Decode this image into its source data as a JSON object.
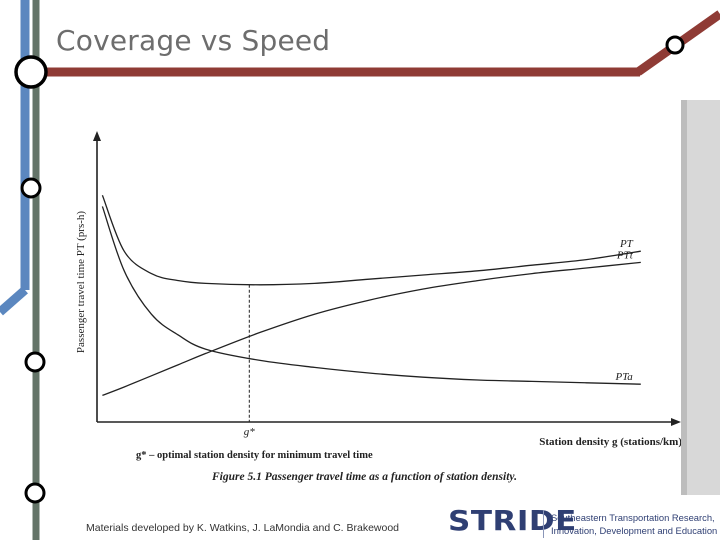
{
  "slide": {
    "title": "Coverage vs Speed",
    "footer": "Materials developed by K. Watkins, J. LaMondia and C. Brakewood",
    "logo": {
      "name": "STRIDE",
      "tagline": [
        "Southeastern Transportation Research,",
        "Innovation, Development and Education Center"
      ]
    },
    "colors": {
      "blue_line": "#5b87bf",
      "gray_line": "#647468",
      "red_line": "#8f3b35",
      "logo_blue": "#2f3f73"
    }
  },
  "chart_data": {
    "type": "line",
    "title": "Figure 5.1  Passenger travel time as a function of station density.",
    "xlabel": "Station density g (stations/km)",
    "ylabel": "Passenger travel time PT (prs-h)",
    "optimum_label": "g*",
    "optimum_note": "g* – optimal station density for minimum travel time",
    "x": [
      0.1,
      0.5,
      1,
      1.5,
      2,
      3,
      4,
      5,
      6,
      7,
      8,
      9,
      10
    ],
    "xlim": [
      0,
      10.5
    ],
    "ylim": [
      0,
      10
    ],
    "optimum_x": 2.8,
    "series": [
      {
        "name": "PT",
        "label": "PT",
        "values": [
          8.1,
          6.1,
          5.3,
          5.05,
          4.95,
          4.9,
          4.95,
          5.1,
          5.25,
          5.4,
          5.6,
          5.8,
          6.1
        ]
      },
      {
        "name": "PTt",
        "label": "PTt",
        "values": [
          0.95,
          1.25,
          1.65,
          2.05,
          2.45,
          3.2,
          3.85,
          4.35,
          4.75,
          5.05,
          5.3,
          5.5,
          5.7
        ]
      },
      {
        "name": "PTa",
        "label": "PTa",
        "values": [
          7.7,
          5.4,
          3.85,
          3.1,
          2.6,
          2.2,
          1.95,
          1.75,
          1.6,
          1.5,
          1.45,
          1.4,
          1.35
        ]
      }
    ]
  }
}
